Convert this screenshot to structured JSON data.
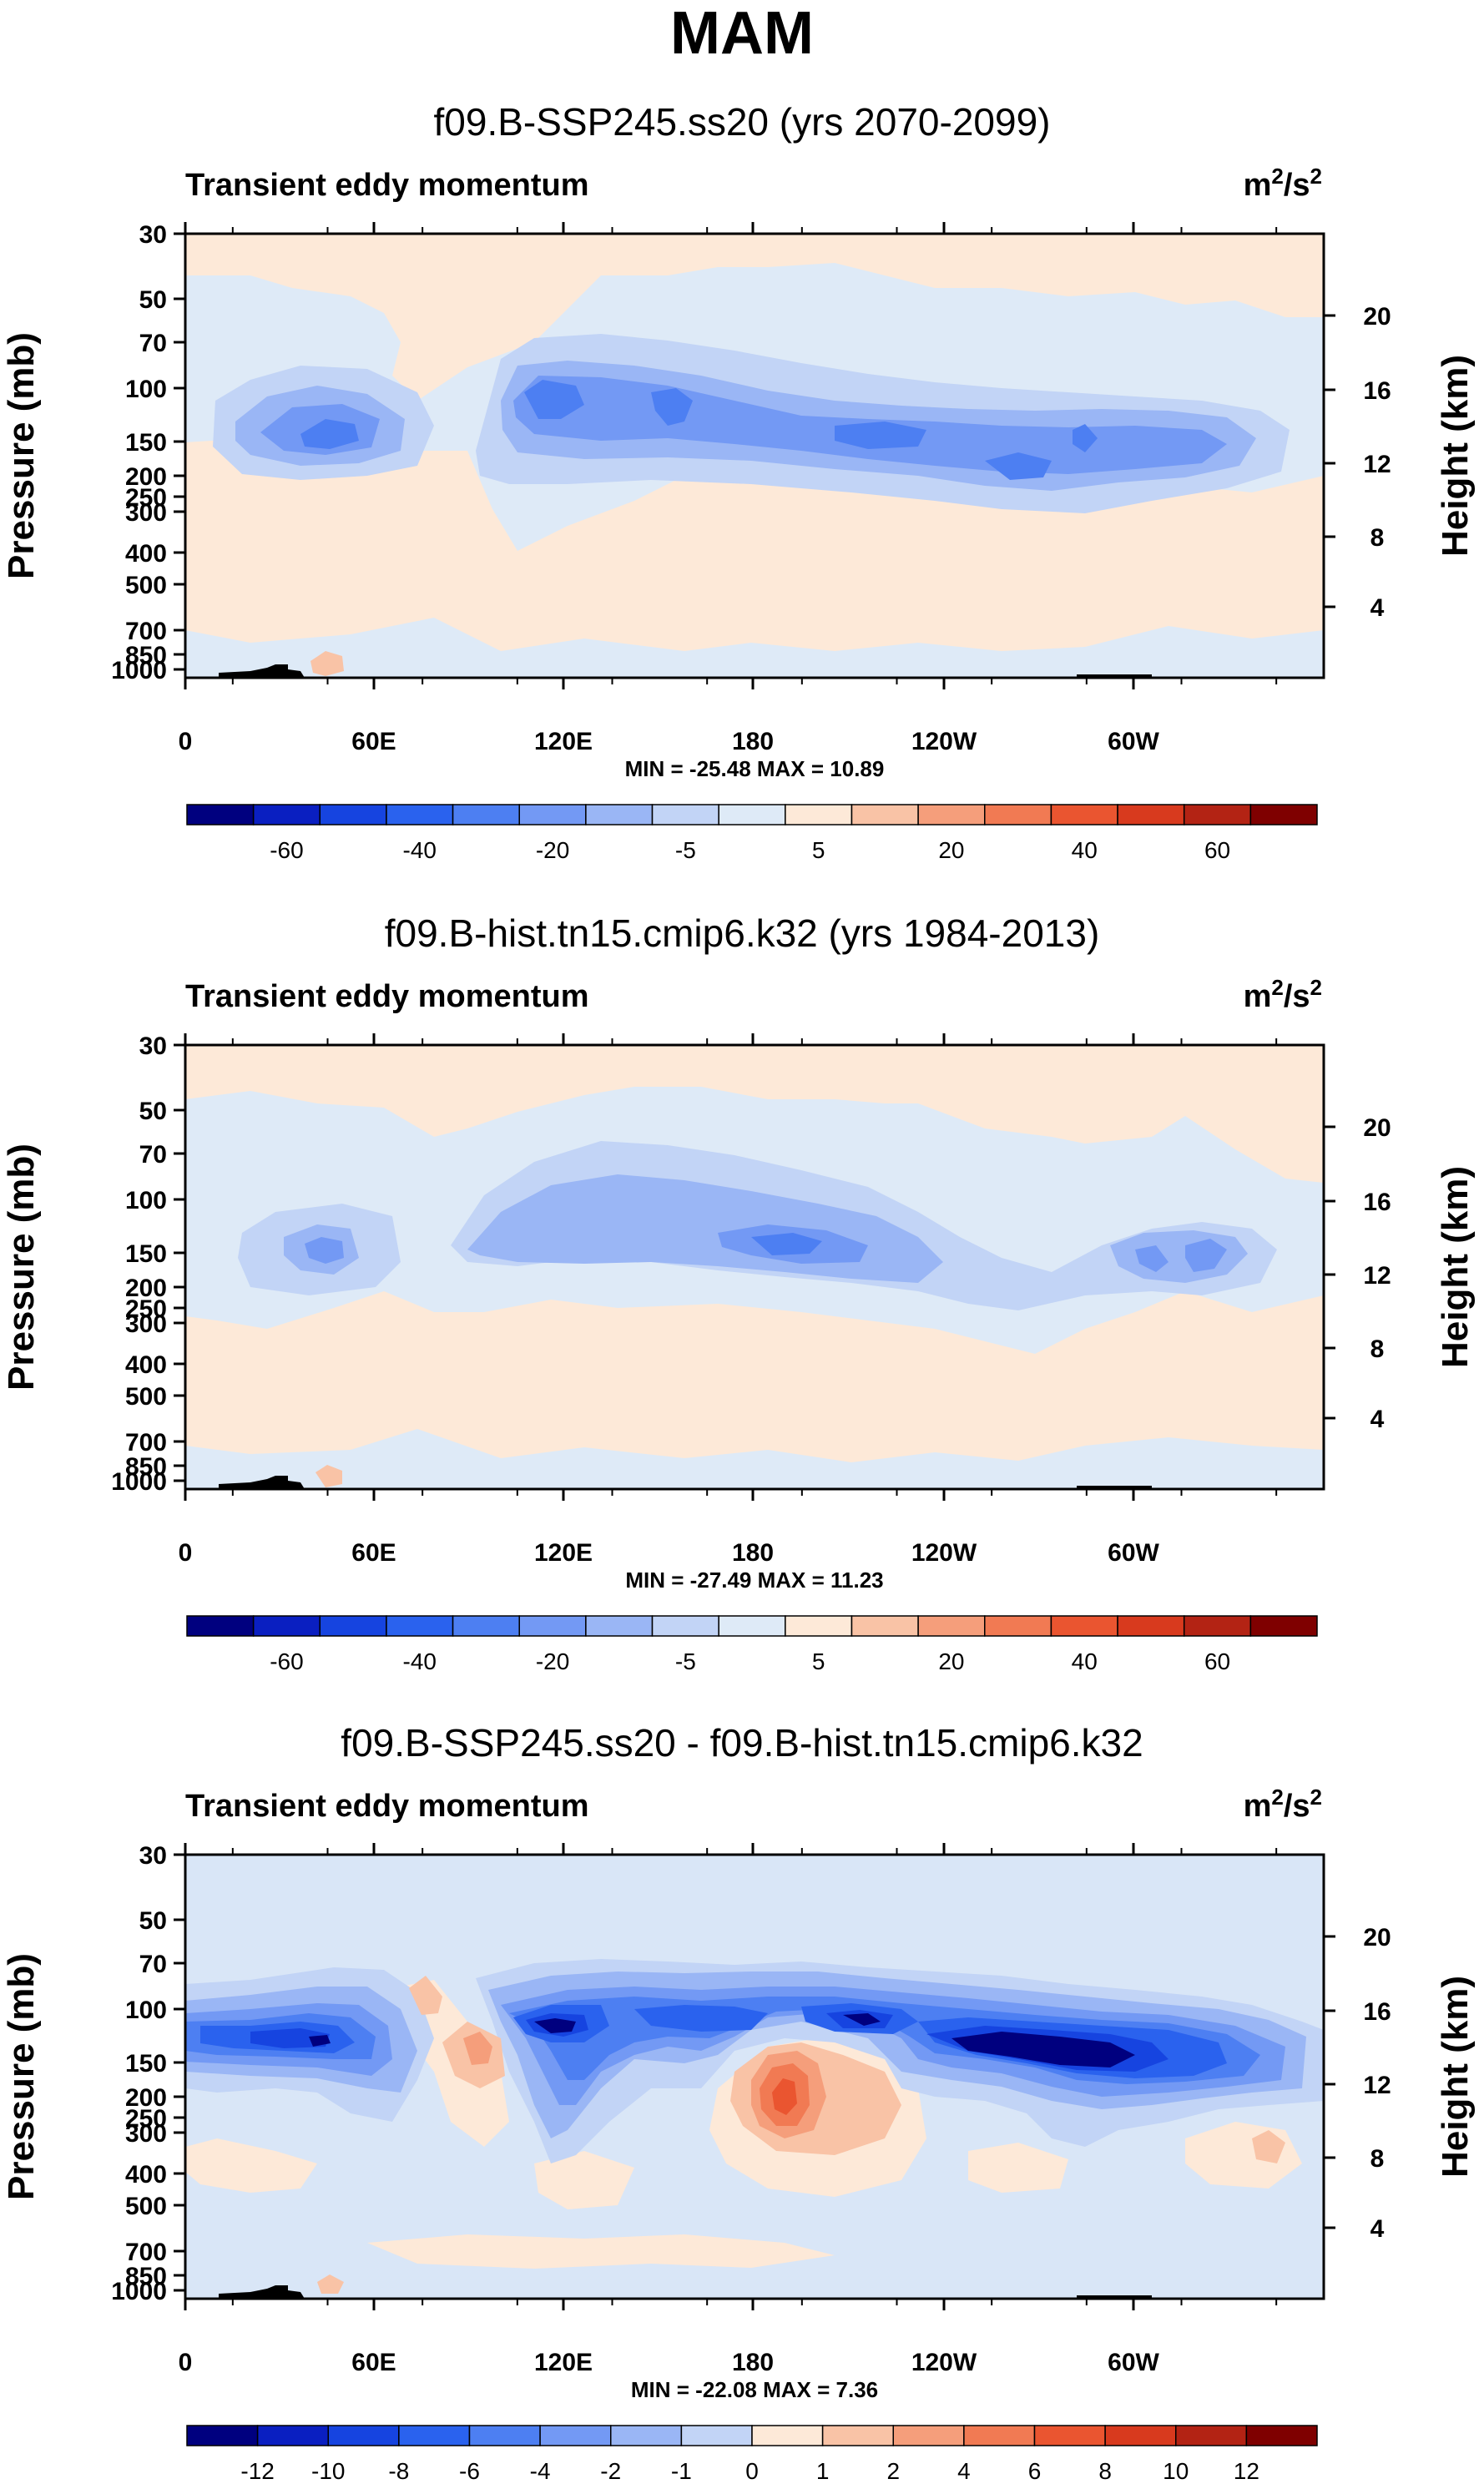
{
  "figure": {
    "title": "MAM"
  },
  "chart_data": [
    {
      "type": "heatmap",
      "title": "f09.B-SSP245.ss20 (yrs 2070-2099)",
      "variable": "Transient eddy momentum",
      "units": "m2/s2",
      "units_base": "m",
      "units_sup1": "2",
      "units_mid": "/s",
      "units_sup2": "2",
      "ylabel": "Pressure (mb)",
      "ylabel_right": "Height (km)",
      "x_ticks": [
        "0",
        "60E",
        "120E",
        "180",
        "120W",
        "60W"
      ],
      "y_ticks": [
        "30",
        "50",
        "70",
        "100",
        "150",
        "200",
        "250",
        "300",
        "400",
        "500",
        "700",
        "850",
        "1000"
      ],
      "y_right_ticks": [
        "20",
        "16",
        "12",
        "8",
        "4"
      ],
      "stats": "MIN = -25.48  MAX =  10.89",
      "colorbar_labels": [
        "-60",
        "-40",
        "-20",
        "-5",
        "5",
        "20",
        "40",
        "60"
      ],
      "colorbar_colors": [
        "#00007f",
        "#0a1fc1",
        "#1644e0",
        "#2a62ee",
        "#4d7ff2",
        "#7399f4",
        "#9ab6f5",
        "#c2d4f6",
        "#deeaf7",
        "#fde9d8",
        "#f9c3a6",
        "#f59e7b",
        "#f17a53",
        "#ea5530",
        "#d83a1e",
        "#b32314",
        "#7f0000"
      ],
      "background": "#fde9d8",
      "min": -25.48,
      "max": 10.89
    },
    {
      "type": "heatmap",
      "title": "f09.B-hist.tn15.cmip6.k32 (yrs 1984-2013)",
      "variable": "Transient eddy momentum",
      "units": "m2/s2",
      "units_base": "m",
      "units_sup1": "2",
      "units_mid": "/s",
      "units_sup2": "2",
      "ylabel": "Pressure (mb)",
      "ylabel_right": "Height (km)",
      "x_ticks": [
        "0",
        "60E",
        "120E",
        "180",
        "120W",
        "60W"
      ],
      "y_ticks": [
        "30",
        "50",
        "70",
        "100",
        "150",
        "200",
        "250",
        "300",
        "400",
        "500",
        "700",
        "850",
        "1000"
      ],
      "y_right_ticks": [
        "20",
        "16",
        "12",
        "8",
        "4"
      ],
      "stats": "MIN = -27.49  MAX =  11.23",
      "colorbar_labels": [
        "-60",
        "-40",
        "-20",
        "-5",
        "5",
        "20",
        "40",
        "60"
      ],
      "colorbar_colors": [
        "#00007f",
        "#0a1fc1",
        "#1644e0",
        "#2a62ee",
        "#4d7ff2",
        "#7399f4",
        "#9ab6f5",
        "#c2d4f6",
        "#deeaf7",
        "#fde9d8",
        "#f9c3a6",
        "#f59e7b",
        "#f17a53",
        "#ea5530",
        "#d83a1e",
        "#b32314",
        "#7f0000"
      ],
      "background": "#fde9d8",
      "min": -27.49,
      "max": 11.23
    },
    {
      "type": "heatmap",
      "title": "f09.B-SSP245.ss20 - f09.B-hist.tn15.cmip6.k32",
      "variable": "Transient eddy momentum",
      "units": "m2/s2",
      "units_base": "m",
      "units_sup1": "2",
      "units_mid": "/s",
      "units_sup2": "2",
      "ylabel": "Pressure (mb)",
      "ylabel_right": "Height (km)",
      "x_ticks": [
        "0",
        "60E",
        "120E",
        "180",
        "120W",
        "60W"
      ],
      "y_ticks": [
        "30",
        "50",
        "70",
        "100",
        "150",
        "200",
        "250",
        "300",
        "400",
        "500",
        "700",
        "850",
        "1000"
      ],
      "y_right_ticks": [
        "20",
        "16",
        "12",
        "8",
        "4"
      ],
      "stats": "MIN = -22.08  MAX =  7.36",
      "colorbar_labels": [
        "-12",
        "-10",
        "-8",
        "-6",
        "-4",
        "-2",
        "-1",
        "0",
        "1",
        "2",
        "4",
        "6",
        "8",
        "10",
        "12"
      ],
      "colorbar_colors": [
        "#00007f",
        "#0a1fc1",
        "#1644e0",
        "#2a62ee",
        "#4d7ff2",
        "#7399f4",
        "#9ab6f5",
        "#c2d4f6",
        "#fde9d8",
        "#f9c3a6",
        "#f59e7b",
        "#f17a53",
        "#ea5530",
        "#d83a1e",
        "#b32314",
        "#7f0000"
      ],
      "background": "#d9e6f7",
      "min": -22.08,
      "max": 7.36
    }
  ]
}
